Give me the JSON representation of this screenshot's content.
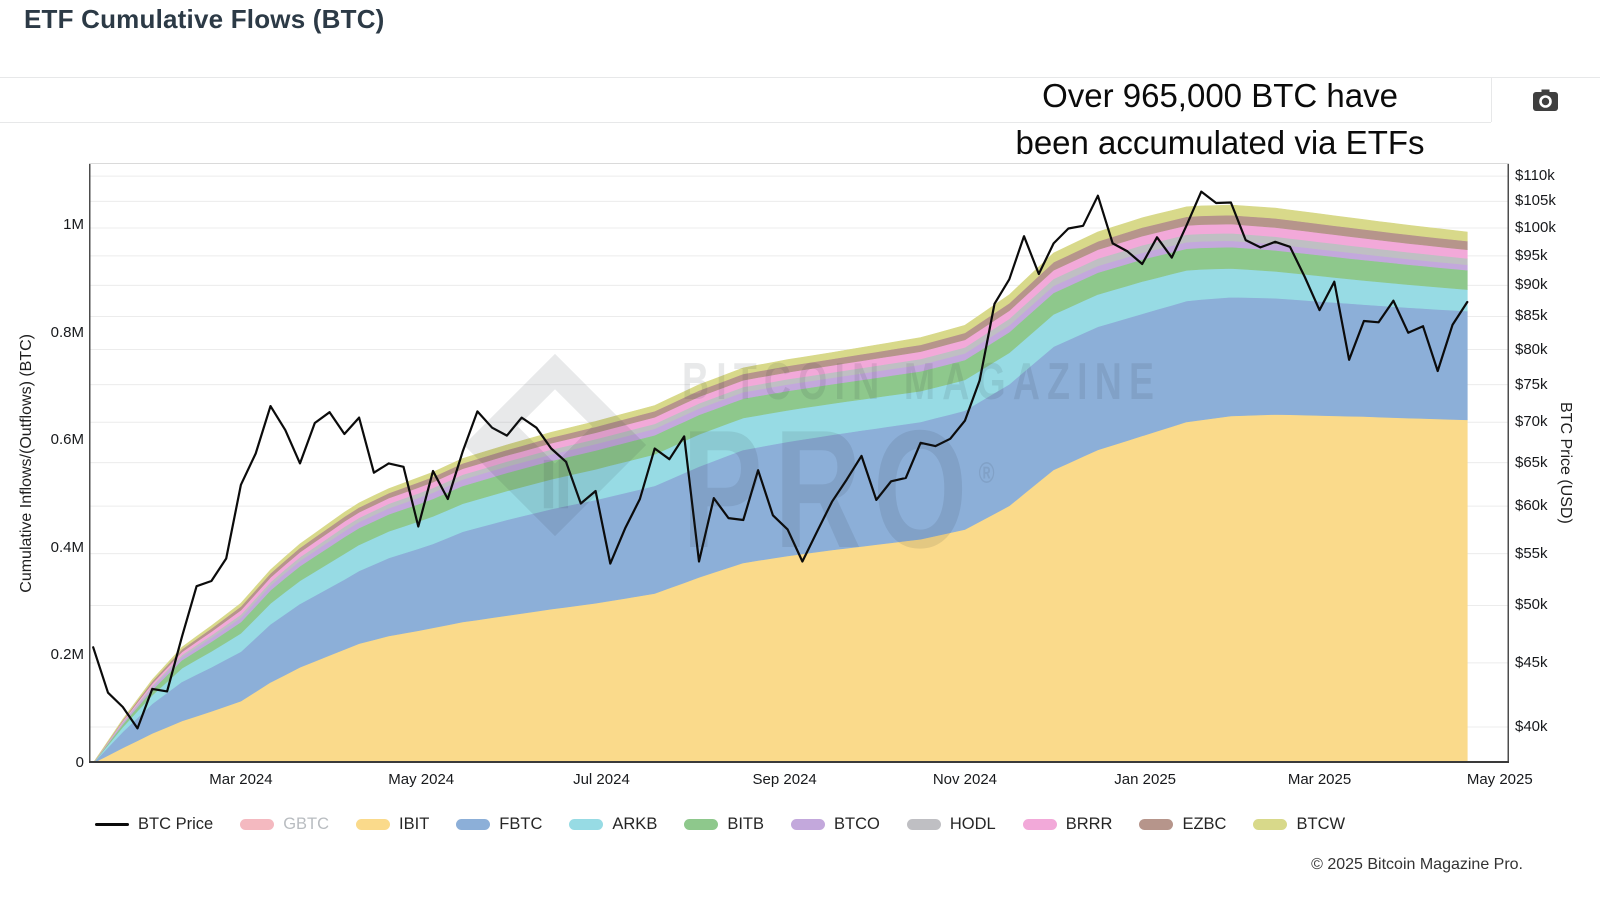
{
  "page": {
    "title": "ETF Cumulative Flows (BTC)",
    "annotation_line1": "Over 965,000 BTC have",
    "annotation_line2": "been accumulated via ETFs",
    "footer": "© 2025 Bitcoin Magazine Pro.",
    "watermark_line1": "BITCOIN MAGAZINE",
    "watermark_line2": "PRO",
    "watermark_reg": "®"
  },
  "chart_data": {
    "type": "area",
    "stacked": true,
    "title": "ETF Cumulative Flows (BTC)",
    "x": {
      "start_date": "2024-01-11",
      "end_date": "2025-04-20",
      "ticks": [
        {
          "label": "Mar 2024",
          "day": 50
        },
        {
          "label": "May 2024",
          "day": 111
        },
        {
          "label": "Jul 2024",
          "day": 172
        },
        {
          "label": "Sep 2024",
          "day": 234
        },
        {
          "label": "Nov 2024",
          "day": 295
        },
        {
          "label": "Jan 2025",
          "day": 356
        },
        {
          "label": "Mar 2025",
          "day": 415
        },
        {
          "label": "May 2025",
          "day": 476
        }
      ]
    },
    "y_left": {
      "label": "Cumulative Inflows/(Outflows) (BTC)",
      "scale": "linear",
      "range_btc": [
        0,
        1115000
      ],
      "ticks": [
        {
          "label": "0",
          "value": 0
        },
        {
          "label": "0.2M",
          "value": 200000
        },
        {
          "label": "0.4M",
          "value": 400000
        },
        {
          "label": "0.6M",
          "value": 600000
        },
        {
          "label": "0.8M",
          "value": 800000
        },
        {
          "label": "1M",
          "value": 1000000
        }
      ]
    },
    "y_right": {
      "label": "BTC Price (USD)",
      "scale": "log",
      "ticks": [
        {
          "label": "$40k",
          "value": 40000
        },
        {
          "label": "$45k",
          "value": 45000
        },
        {
          "label": "$50k",
          "value": 50000
        },
        {
          "label": "$55k",
          "value": 55000
        },
        {
          "label": "$60k",
          "value": 60000
        },
        {
          "label": "$65k",
          "value": 65000
        },
        {
          "label": "$70k",
          "value": 70000
        },
        {
          "label": "$75k",
          "value": 75000
        },
        {
          "label": "$80k",
          "value": 80000
        },
        {
          "label": "$85k",
          "value": 85000
        },
        {
          "label": "$90k",
          "value": 90000
        },
        {
          "label": "$95k",
          "value": 95000
        },
        {
          "label": "$100k",
          "value": 100000
        },
        {
          "label": "$105k",
          "value": 105000
        },
        {
          "label": "$110k",
          "value": 110000
        }
      ]
    },
    "price_series": {
      "name": "BTC Price",
      "color": "#0b0b0b",
      "unit": "USD thousands",
      "step_days": 5,
      "values_usd_k": [
        46.3,
        42.6,
        41.5,
        39.9,
        42.9,
        42.7,
        47.2,
        51.8,
        52.3,
        54.5,
        62.4,
        66.1,
        72.1,
        69.0,
        64.9,
        69.9,
        71.3,
        68.5,
        70.6,
        63.8,
        64.9,
        64.5,
        57.8,
        64.0,
        60.8,
        66.3,
        71.4,
        69.3,
        68.3,
        70.6,
        69.3,
        66.7,
        65.1,
        60.3,
        61.7,
        54.0,
        57.6,
        60.8,
        66.7,
        65.4,
        68.2,
        54.2,
        60.9,
        58.7,
        58.5,
        64.1,
        59.0,
        57.5,
        54.2,
        57.3,
        60.5,
        63.0,
        65.8,
        60.7,
        62.8,
        63.2,
        67.4,
        67.0,
        67.9,
        70.2,
        75.6,
        87.0,
        91.0,
        98.5,
        91.9,
        97.2,
        99.9,
        100.4,
        106.1,
        97.2,
        95.8,
        93.6,
        98.3,
        94.7,
        100.5,
        106.9,
        104.7,
        104.8,
        97.8,
        96.5,
        97.5,
        96.6,
        91.4,
        86.0,
        90.6,
        78.5,
        84.3,
        84.1,
        87.5,
        82.5,
        83.5,
        76.9,
        83.7,
        87.3
      ]
    },
    "series": [
      {
        "name": "GBTC",
        "color": "#f4b9c0",
        "hidden": true,
        "keyframes_day_kbtc": []
      },
      {
        "name": "IBIT",
        "color": "#fada8b",
        "hidden": false,
        "keyframes_day_kbtc": [
          [
            0,
            0
          ],
          [
            10,
            28
          ],
          [
            20,
            55
          ],
          [
            30,
            78
          ],
          [
            40,
            96
          ],
          [
            50,
            115
          ],
          [
            60,
            150
          ],
          [
            70,
            178
          ],
          [
            80,
            200
          ],
          [
            90,
            222
          ],
          [
            100,
            236
          ],
          [
            110,
            246
          ],
          [
            125,
            262
          ],
          [
            140,
            274
          ],
          [
            155,
            286
          ],
          [
            170,
            297
          ],
          [
            190,
            315
          ],
          [
            205,
            345
          ],
          [
            220,
            372
          ],
          [
            235,
            385
          ],
          [
            250,
            396
          ],
          [
            265,
            406
          ],
          [
            280,
            416
          ],
          [
            295,
            434
          ],
          [
            310,
            478
          ],
          [
            325,
            545
          ],
          [
            340,
            582
          ],
          [
            355,
            608
          ],
          [
            370,
            634
          ],
          [
            385,
            645
          ],
          [
            400,
            648
          ],
          [
            415,
            646
          ],
          [
            430,
            644
          ],
          [
            445,
            641
          ],
          [
            465,
            638
          ]
        ]
      },
      {
        "name": "FBTC",
        "color": "#8cafd8",
        "hidden": false,
        "keyframes_day_kbtc": [
          [
            0,
            0
          ],
          [
            10,
            30
          ],
          [
            20,
            55
          ],
          [
            30,
            73
          ],
          [
            40,
            82
          ],
          [
            50,
            92
          ],
          [
            60,
            108
          ],
          [
            70,
            118
          ],
          [
            85,
            130
          ],
          [
            100,
            145
          ],
          [
            115,
            156
          ],
          [
            125,
            168
          ],
          [
            140,
            178
          ],
          [
            155,
            186
          ],
          [
            170,
            192
          ],
          [
            190,
            200
          ],
          [
            205,
            206
          ],
          [
            220,
            210
          ],
          [
            235,
            212
          ],
          [
            250,
            214
          ],
          [
            265,
            216
          ],
          [
            280,
            218
          ],
          [
            295,
            221
          ],
          [
            310,
            226
          ],
          [
            325,
            229
          ],
          [
            340,
            229
          ],
          [
            355,
            227
          ],
          [
            375,
            224
          ],
          [
            400,
            216
          ],
          [
            430,
            208
          ],
          [
            465,
            202
          ]
        ]
      },
      {
        "name": "ARKB",
        "color": "#97dbe4",
        "hidden": false,
        "keyframes_day_kbtc": [
          [
            0,
            0
          ],
          [
            10,
            9
          ],
          [
            20,
            16
          ],
          [
            30,
            25
          ],
          [
            50,
            34
          ],
          [
            65,
            41
          ],
          [
            85,
            48
          ],
          [
            125,
            52
          ],
          [
            170,
            57
          ],
          [
            205,
            60
          ],
          [
            250,
            58
          ],
          [
            295,
            57
          ],
          [
            325,
            60
          ],
          [
            355,
            60
          ],
          [
            375,
            56
          ],
          [
            400,
            50
          ],
          [
            430,
            45
          ],
          [
            465,
            40
          ]
        ]
      },
      {
        "name": "BITB",
        "color": "#8ec88c",
        "hidden": false,
        "keyframes_day_kbtc": [
          [
            0,
            0
          ],
          [
            10,
            5
          ],
          [
            20,
            10
          ],
          [
            30,
            15
          ],
          [
            50,
            21
          ],
          [
            65,
            26
          ],
          [
            85,
            31
          ],
          [
            125,
            33
          ],
          [
            170,
            35
          ],
          [
            205,
            36
          ],
          [
            250,
            36
          ],
          [
            295,
            37
          ],
          [
            325,
            40
          ],
          [
            355,
            41
          ],
          [
            375,
            40
          ],
          [
            400,
            39
          ],
          [
            430,
            38
          ],
          [
            465,
            36
          ]
        ]
      },
      {
        "name": "BTCO",
        "color": "#c3a8dc",
        "hidden": false,
        "keyframes_day_kbtc": [
          [
            0,
            0
          ],
          [
            20,
            5
          ],
          [
            50,
            8
          ],
          [
            85,
            11
          ],
          [
            125,
            12
          ],
          [
            170,
            12
          ],
          [
            250,
            12
          ],
          [
            325,
            13
          ],
          [
            375,
            12
          ],
          [
            465,
            10
          ]
        ]
      },
      {
        "name": "HODL",
        "color": "#bfbfc3",
        "hidden": false,
        "keyframes_day_kbtc": [
          [
            0,
            0
          ],
          [
            20,
            3
          ],
          [
            50,
            6
          ],
          [
            85,
            8
          ],
          [
            125,
            9
          ],
          [
            170,
            9
          ],
          [
            250,
            10
          ],
          [
            295,
            11
          ],
          [
            325,
            13
          ],
          [
            355,
            14
          ],
          [
            400,
            14
          ],
          [
            465,
            12
          ]
        ]
      },
      {
        "name": "BRRR",
        "color": "#f2a9d9",
        "hidden": false,
        "keyframes_day_kbtc": [
          [
            0,
            0
          ],
          [
            20,
            4
          ],
          [
            50,
            8
          ],
          [
            85,
            10
          ],
          [
            125,
            11
          ],
          [
            170,
            12
          ],
          [
            250,
            13
          ],
          [
            295,
            14
          ],
          [
            325,
            16
          ],
          [
            355,
            17
          ],
          [
            400,
            17
          ],
          [
            465,
            16
          ]
        ]
      },
      {
        "name": "EZBC",
        "color": "#b6958b",
        "hidden": false,
        "keyframes_day_kbtc": [
          [
            0,
            0
          ],
          [
            20,
            4
          ],
          [
            50,
            7
          ],
          [
            85,
            9
          ],
          [
            125,
            10
          ],
          [
            170,
            11
          ],
          [
            250,
            12
          ],
          [
            295,
            13
          ],
          [
            325,
            15
          ],
          [
            355,
            16
          ],
          [
            400,
            17
          ],
          [
            465,
            16
          ]
        ]
      },
      {
        "name": "BTCW",
        "color": "#d8d98a",
        "hidden": false,
        "keyframes_day_kbtc": [
          [
            0,
            0
          ],
          [
            20,
            3
          ],
          [
            50,
            6
          ],
          [
            85,
            8
          ],
          [
            125,
            9
          ],
          [
            170,
            10
          ],
          [
            250,
            12
          ],
          [
            295,
            14
          ],
          [
            325,
            17
          ],
          [
            355,
            18
          ],
          [
            400,
            19
          ],
          [
            465,
            17
          ]
        ]
      }
    ],
    "legend_position": "bottom",
    "grid": "horizontal-right-axis"
  },
  "legend": {
    "items": [
      {
        "label": "BTC Price",
        "type": "line",
        "color": "#0b0b0b",
        "text_color": "#262626",
        "active": true
      },
      {
        "label": "GBTC",
        "type": "area",
        "color": "#f4b9c0",
        "text_color": "#b8bcc0",
        "active": false
      },
      {
        "label": "IBIT",
        "type": "area",
        "color": "#fada8b",
        "text_color": "#262626",
        "active": true
      },
      {
        "label": "FBTC",
        "type": "area",
        "color": "#8cafd8",
        "text_color": "#262626",
        "active": true
      },
      {
        "label": "ARKB",
        "type": "area",
        "color": "#97dbe4",
        "text_color": "#262626",
        "active": true
      },
      {
        "label": "BITB",
        "type": "area",
        "color": "#8ec88c",
        "text_color": "#262626",
        "active": true
      },
      {
        "label": "BTCO",
        "type": "area",
        "color": "#c3a8dc",
        "text_color": "#262626",
        "active": true
      },
      {
        "label": "HODL",
        "type": "area",
        "color": "#bfbfc3",
        "text_color": "#262626",
        "active": true
      },
      {
        "label": "BRRR",
        "type": "area",
        "color": "#f2a9d9",
        "text_color": "#262626",
        "active": true
      },
      {
        "label": "EZBC",
        "type": "area",
        "color": "#b6958b",
        "text_color": "#262626",
        "active": true
      },
      {
        "label": "BTCW",
        "type": "area",
        "color": "#d8d98a",
        "text_color": "#262626",
        "active": true
      }
    ]
  },
  "colors": {
    "grid_line": "#ececec",
    "axis_side": "#4d4d4d",
    "axis_bottom": "#3a3a3a",
    "axis_top": "#dadada",
    "title": "#2c3a46",
    "camera_icon": "#3f3f3f"
  }
}
